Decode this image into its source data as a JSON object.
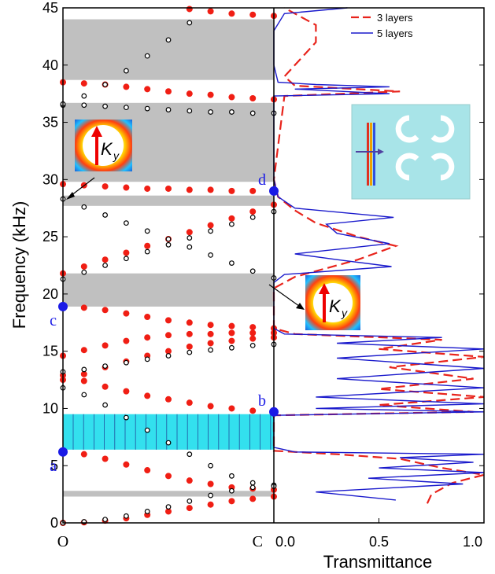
{
  "chart_data": [
    {
      "type": "band-dots",
      "y_label": "Frequency (kHz)",
      "x": [
        0,
        0.1,
        0.2,
        0.3,
        0.4,
        0.5,
        0.6,
        0.7,
        0.8,
        0.9,
        1.0
      ],
      "xlim": [
        0,
        1
      ],
      "xticks": [
        {
          "value": 0,
          "label": "O"
        },
        {
          "value": 1,
          "label": "C"
        }
      ],
      "ylim": [
        0,
        45
      ],
      "yticks": [
        0,
        5,
        10,
        15,
        20,
        25,
        30,
        35,
        40,
        45
      ],
      "gaps": [
        [
          2.3,
          2.8
        ],
        [
          18.9,
          21.8
        ],
        [
          27.7,
          28.6
        ],
        [
          29.8,
          36.7
        ],
        [
          38.7,
          44
        ]
      ],
      "gap_color": "#c0c0c0",
      "highlight": [
        6.4,
        9.5
      ],
      "highlight_color": "#33e0ee",
      "series": [
        {
          "color": "#f01e14",
          "style": "filled",
          "values": [
            0,
            0.05,
            0.2,
            0.4,
            0.7,
            1.0,
            1.3,
            1.6,
            1.9,
            2.1,
            2.3
          ]
        },
        {
          "color": "#f01e14",
          "style": "filled",
          "values": [
            6.2,
            6.0,
            5.6,
            5.1,
            4.6,
            4.1,
            3.7,
            3.4,
            3.1,
            3.0,
            2.9
          ]
        },
        {
          "color": "#f01e14",
          "style": "filled",
          "values": [
            12.9,
            12.4,
            11.9,
            11.5,
            11.1,
            10.8,
            10.5,
            10.2,
            10.0,
            9.8,
            9.7
          ]
        },
        {
          "color": "#f01e14",
          "style": "filled",
          "values": [
            12.5,
            13.0,
            13.6,
            14.1,
            14.6,
            15.0,
            15.4,
            15.7,
            15.9,
            16.1,
            16.2
          ]
        },
        {
          "color": "#f01e14",
          "style": "filled",
          "values": [
            14.6,
            15.1,
            15.5,
            15.9,
            16.2,
            16.4,
            16.5,
            16.5,
            16.6,
            16.6,
            16.6
          ]
        },
        {
          "color": "#f01e14",
          "style": "filled",
          "values": [
            18.9,
            18.8,
            18.6,
            18.3,
            18.0,
            17.7,
            17.5,
            17.3,
            17.2,
            17.1,
            17.0
          ]
        },
        {
          "color": "#f01e14",
          "style": "filled",
          "values": [
            21.8,
            22.4,
            23.0,
            23.6,
            24.2,
            24.8,
            25.4,
            26.0,
            26.6,
            27.2,
            27.8
          ]
        },
        {
          "color": "#f01e14",
          "style": "filled",
          "values": [
            29.6,
            29.5,
            29.4,
            29.3,
            29.2,
            29.2,
            29.1,
            29.1,
            29.0,
            29.0,
            29.0
          ]
        },
        {
          "color": "#f01e14",
          "style": "filled",
          "values": [
            38.5,
            38.4,
            38.3,
            38.1,
            37.9,
            37.7,
            37.5,
            37.4,
            37.2,
            37.1,
            37.0
          ]
        },
        {
          "color": "#f01e14",
          "style": "filled",
          "values": [
            null,
            null,
            null,
            null,
            null,
            null,
            44.9,
            44.7,
            44.5,
            44.4,
            44.3
          ]
        },
        {
          "color": "#000000",
          "style": "open",
          "values": [
            0,
            0.1,
            0.3,
            0.6,
            1.0,
            1.4,
            1.9,
            2.4,
            2.8,
            3.1,
            3.3
          ]
        },
        {
          "color": "#000000",
          "style": "open",
          "values": [
            11.8,
            11.2,
            10.3,
            9.2,
            8.1,
            7.0,
            6.0,
            5.0,
            4.1,
            3.5,
            3.2
          ]
        },
        {
          "color": "#000000",
          "style": "open",
          "values": [
            13.2,
            13.4,
            13.7,
            14.0,
            14.3,
            14.6,
            14.9,
            15.1,
            15.3,
            15.5,
            15.6
          ]
        },
        {
          "color": "#000000",
          "style": "open",
          "values": [
            21.3,
            21.9,
            22.5,
            23.1,
            23.7,
            24.3,
            24.9,
            25.5,
            26.1,
            26.7,
            27.2
          ]
        },
        {
          "color": "#000000",
          "style": "open",
          "values": [
            28.3,
            27.6,
            26.9,
            26.2,
            25.5,
            24.8,
            24.1,
            23.4,
            22.7,
            22.0,
            21.4
          ]
        },
        {
          "color": "#000000",
          "style": "open",
          "values": [
            36.5,
            36.5,
            36.4,
            36.3,
            36.2,
            36.1,
            36.0,
            35.9,
            35.9,
            35.8,
            35.8
          ]
        },
        {
          "color": "#000000",
          "style": "open",
          "values": [
            36.6,
            37.3,
            38.3,
            39.5,
            40.8,
            42.2,
            43.7,
            null,
            null,
            null,
            null
          ]
        }
      ],
      "points": [
        {
          "label": "a",
          "x": 0,
          "y": 6.2
        },
        {
          "label": "b",
          "x": 1,
          "y": 9.7
        },
        {
          "label": "c",
          "x": 0,
          "y": 18.9
        },
        {
          "label": "d",
          "x": 1,
          "y": 29.0
        }
      ],
      "point_color": "#1a1ae6",
      "inset_label": {
        "main": "K",
        "sub": "y"
      }
    },
    {
      "type": "transmittance",
      "x_label": "Transmittance",
      "xlim": [
        0,
        1
      ],
      "xticks": [
        {
          "value": 0,
          "label": "0.0"
        },
        0.5,
        {
          "value": 1,
          "label": "1.0"
        }
      ],
      "ylim": [
        0,
        45
      ],
      "legend": "top-right",
      "series": [
        {
          "name": "3 layers",
          "color": "#e8231b",
          "dash": true,
          "y": [
            1.7,
            2.5,
            3.5,
            4.2,
            4.8,
            5.6,
            6.0,
            6.3,
            9.4,
            9.7,
            10.3,
            11.0,
            11.7,
            12.6,
            13.6,
            14.5,
            15.2,
            16.0,
            16.5,
            17,
            20.5,
            21.5,
            23,
            24.2,
            25,
            26.2,
            27.3,
            28.5,
            30,
            37.3,
            37.7,
            38.2,
            39,
            40,
            42,
            43.5,
            44.5,
            45
          ],
          "values": [
            0.73,
            0.75,
            0.85,
            1.0,
            0.8,
            0.6,
            0.3,
            0,
            0,
            0.95,
            0.5,
            1.0,
            0.5,
            0.95,
            0.55,
            1.0,
            0.5,
            0.8,
            0.1,
            0,
            0,
            0.1,
            0.4,
            0.58,
            0.4,
            0.2,
            0.1,
            0.02,
            0,
            0.05,
            0.6,
            0.1,
            0.05,
            0.1,
            0.2,
            0.2,
            0.1,
            0.05
          ]
        },
        {
          "name": "5 layers",
          "color": "#1a1acc",
          "dash": false,
          "y": [
            2,
            2.7,
            3.4,
            3.9,
            4.4,
            4.8,
            5.3,
            5.7,
            6.0,
            6.2,
            6.6,
            9.4,
            9.7,
            10.0,
            10.4,
            11.0,
            11.8,
            12.6,
            13.5,
            14.4,
            15.2,
            15.7,
            16.2,
            16.5,
            17,
            21,
            21.7,
            22.4,
            23.0,
            23.5,
            24.4,
            25.3,
            26.1,
            26.7,
            27.5,
            28.5,
            30,
            37.3,
            37.5,
            37.9,
            38.1,
            38.3,
            38.5,
            40,
            43,
            44.5,
            45
          ],
          "values": [
            0.58,
            0.2,
            0.9,
            0.45,
            1.0,
            0.5,
            0.95,
            0.6,
            1.0,
            0.1,
            0,
            0,
            1.0,
            0.2,
            1.0,
            0.2,
            1.0,
            0.3,
            1.0,
            0.3,
            1.0,
            0.3,
            0.8,
            0.05,
            0,
            0,
            0.05,
            0.56,
            0.3,
            0.1,
            0.55,
            0.3,
            0.25,
            0.57,
            0.1,
            0.02,
            0,
            0,
            0.55,
            0.1,
            0.55,
            0.2,
            0.02,
            0,
            0,
            0.05,
            0.35
          ]
        }
      ]
    }
  ]
}
